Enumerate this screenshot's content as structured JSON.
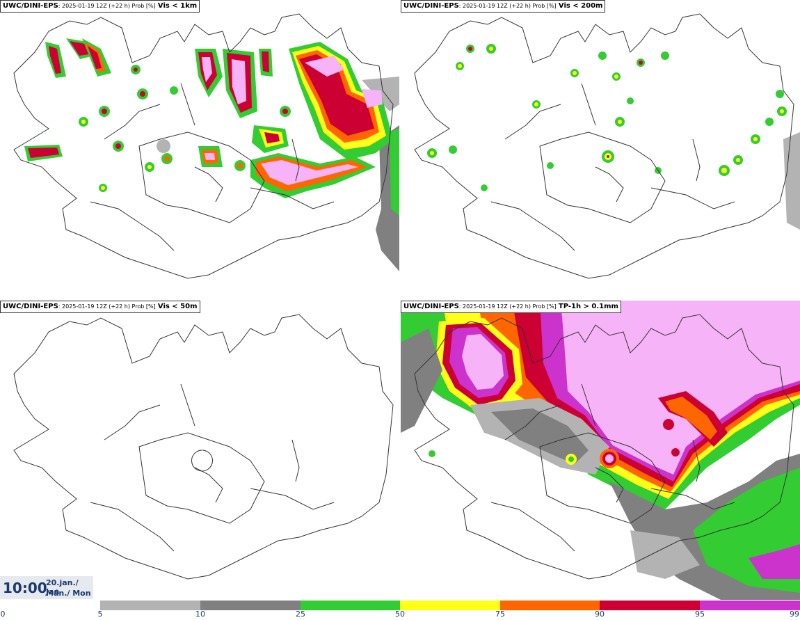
{
  "panels": [
    {
      "source": "UWC/DINI-EPS",
      "middle": ": 2025-01-19 12Z (+22 h) Prob [%]",
      "variable": "Vis < 1km"
    },
    {
      "source": "UWC/DINI-EPS",
      "middle": ": 2025-01-19 12Z (+22 h) Prob [%]",
      "variable": "Vis < 200m"
    },
    {
      "source": "UWC/DINI-EPS",
      "middle": ": 2025-01-19 12Z (+22 h) Prob [%]",
      "variable": "Vis < 50m"
    },
    {
      "source": "UWC/DINI-EPS",
      "middle": ": 2025-01-19 12Z (+22 h) Prob [%]",
      "variable": "TP-1h > 0.1mm"
    }
  ],
  "time": {
    "clock": "10:00",
    "date_line": "20.jan./ Jan",
    "day_line": "Mán./ Mon"
  },
  "colorbar": {
    "levels": [
      "0",
      "5",
      "10",
      "25",
      "50",
      "75",
      "90",
      "95",
      "99"
    ],
    "colors": [
      "#b3b3b3",
      "#808080",
      "#33cc33",
      "#ffff1a",
      "#ff6600",
      "#cc0033",
      "#cc33cc",
      "#f7b3f7"
    ]
  }
}
